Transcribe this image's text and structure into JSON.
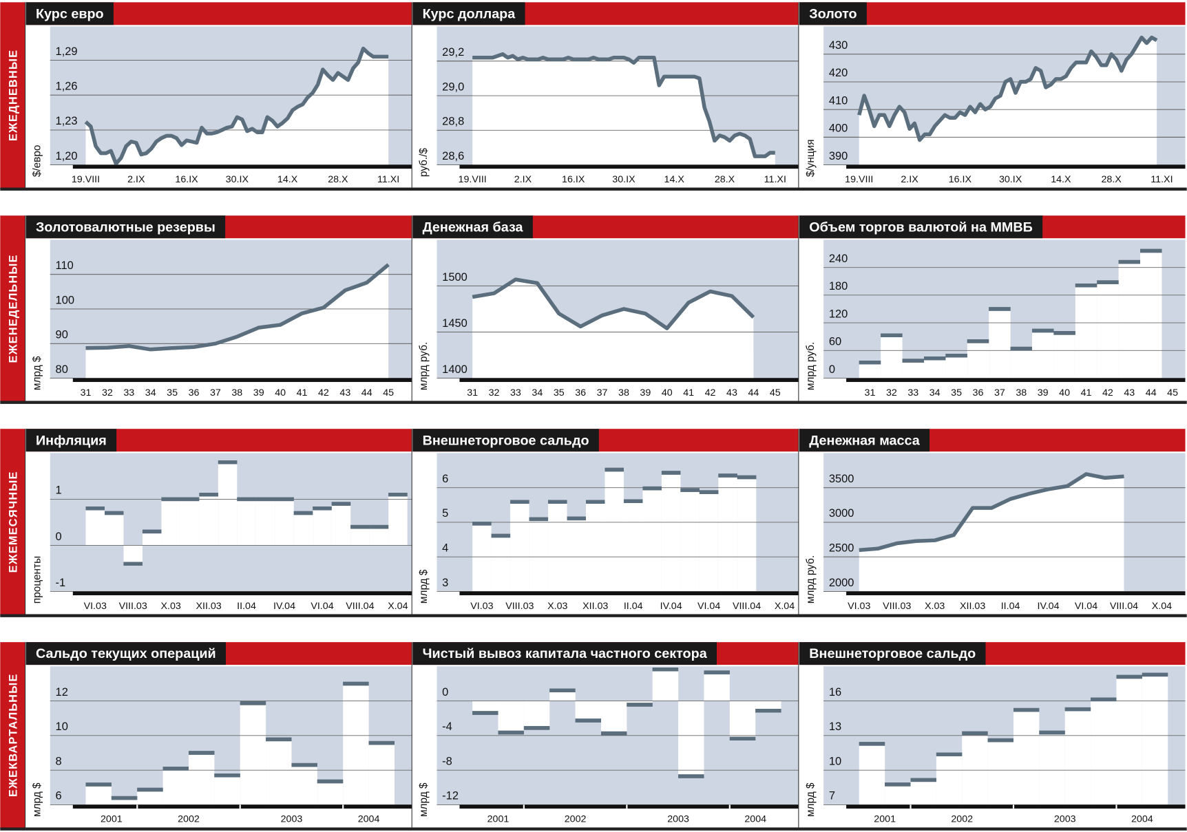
{
  "row_labels": [
    "ЕЖЕДНЕВНЫЕ",
    "ЕЖЕНЕДЕЛЬНЫЕ",
    "ЕЖЕМЕСЯЧНЫЕ",
    "ЕЖЕКВАРТАЛЬНЫЕ"
  ],
  "chart_data": [
    {
      "type": "line",
      "title": "Курс евро",
      "y_label": "$/евро",
      "color": "#5b6e7e",
      "grid": true,
      "categories": [
        "19.VIII",
        null,
        null,
        null,
        null,
        null,
        null,
        null,
        null,
        null,
        "2.IX",
        null,
        null,
        null,
        null,
        null,
        null,
        null,
        null,
        null,
        "16.IX",
        null,
        null,
        null,
        null,
        null,
        null,
        null,
        null,
        null,
        "30.IX",
        null,
        null,
        null,
        null,
        null,
        null,
        null,
        null,
        null,
        "14.X",
        null,
        null,
        null,
        null,
        null,
        null,
        null,
        null,
        null,
        "28.X",
        null,
        null,
        null,
        null,
        null,
        null,
        null,
        null,
        null,
        "11.XI"
      ],
      "values": [
        1.237,
        1.233,
        1.216,
        1.21,
        1.21,
        1.212,
        1.201,
        1.206,
        1.216,
        1.22,
        1.219,
        1.209,
        1.21,
        1.214,
        1.22,
        1.223,
        1.225,
        1.225,
        1.223,
        1.217,
        1.221,
        1.22,
        1.219,
        1.232,
        1.227,
        1.227,
        1.228,
        1.23,
        1.232,
        1.233,
        1.241,
        1.239,
        1.229,
        1.231,
        1.228,
        1.228,
        1.241,
        1.238,
        1.233,
        1.236,
        1.24,
        1.247,
        1.25,
        1.252,
        1.258,
        1.262,
        1.269,
        1.282,
        1.277,
        1.273,
        1.279,
        1.276,
        1.273,
        1.283,
        1.288,
        1.3,
        1.296,
        1.293,
        1.293,
        1.293,
        1.293
      ],
      "ylim": [
        1.2,
        1.319
      ],
      "yticks": [
        {
          "value": 1.2,
          "label": "1,20"
        },
        {
          "value": 1.23,
          "label": "1,23"
        },
        {
          "value": 1.26,
          "label": "1,26"
        },
        {
          "value": 1.29,
          "label": "1,29"
        }
      ]
    },
    {
      "type": "line",
      "title": "Курс доллара",
      "y_label": "руб./$",
      "color": "#5b6e7e",
      "grid": true,
      "categories": [
        "19.VIII",
        null,
        null,
        null,
        null,
        null,
        null,
        null,
        null,
        null,
        "2.IX",
        null,
        null,
        null,
        null,
        null,
        null,
        null,
        null,
        null,
        "16.IX",
        null,
        null,
        null,
        null,
        null,
        null,
        null,
        null,
        null,
        "30.IX",
        null,
        null,
        null,
        null,
        null,
        null,
        null,
        null,
        null,
        "14.X",
        null,
        null,
        null,
        null,
        null,
        null,
        null,
        null,
        null,
        "28.X",
        null,
        null,
        null,
        null,
        null,
        null,
        null,
        null,
        null,
        "11.XI"
      ],
      "values": [
        29.22,
        29.22,
        29.22,
        29.22,
        29.22,
        29.23,
        29.24,
        29.22,
        29.23,
        29.21,
        29.22,
        29.21,
        29.21,
        29.21,
        29.22,
        29.21,
        29.21,
        29.21,
        29.21,
        29.22,
        29.21,
        29.21,
        29.21,
        29.21,
        29.22,
        29.21,
        29.21,
        29.21,
        29.22,
        29.22,
        29.22,
        29.21,
        29.19,
        29.22,
        29.22,
        29.22,
        29.22,
        29.06,
        29.11,
        29.11,
        29.11,
        29.11,
        29.11,
        29.11,
        29.11,
        29.1,
        28.93,
        28.85,
        28.74,
        28.77,
        28.76,
        28.74,
        28.77,
        28.78,
        28.77,
        28.75,
        28.65,
        28.65,
        28.65,
        28.67,
        28.67
      ],
      "ylim": [
        28.6,
        29.4
      ],
      "yticks": [
        {
          "value": 28.6,
          "label": "28,6"
        },
        {
          "value": 28.8,
          "label": "28,8"
        },
        {
          "value": 29.0,
          "label": "29,0"
        },
        {
          "value": 29.2,
          "label": "29,2"
        }
      ]
    },
    {
      "type": "line",
      "title": "Золото",
      "y_label": "$/унция",
      "color": "#5b6e7e",
      "grid": true,
      "categories": [
        "19.VIII",
        null,
        null,
        null,
        null,
        null,
        null,
        null,
        null,
        null,
        "2.IX",
        null,
        null,
        null,
        null,
        null,
        null,
        null,
        null,
        null,
        "16.IX",
        null,
        null,
        null,
        null,
        null,
        null,
        null,
        null,
        null,
        "30.IX",
        null,
        null,
        null,
        null,
        null,
        null,
        null,
        null,
        null,
        "14.X",
        null,
        null,
        null,
        null,
        null,
        null,
        null,
        null,
        null,
        "28.X",
        null,
        null,
        null,
        null,
        null,
        null,
        null,
        null,
        null,
        "11.XI"
      ],
      "values": [
        408,
        415,
        410,
        404,
        408,
        408,
        404,
        408,
        411,
        409,
        403,
        405,
        399,
        401,
        401,
        404,
        406,
        408,
        407,
        407,
        409,
        408,
        411,
        409,
        412,
        410,
        411,
        414,
        415,
        420,
        421,
        416,
        420,
        420,
        421,
        425,
        424,
        418,
        419,
        421,
        421,
        422,
        425,
        427,
        427,
        427,
        431,
        429,
        426,
        426,
        430,
        428,
        424,
        428,
        430,
        433,
        436,
        434,
        436,
        435,
        null
      ],
      "ylim": [
        390,
        440
      ],
      "yticks": [
        390,
        400,
        410,
        420,
        430
      ]
    },
    {
      "type": "line",
      "title": "Золотовалютные резервы",
      "y_label": "млрд $",
      "color": "#5b6e7e",
      "grid": true,
      "categories": [
        "31",
        "32",
        "33",
        "34",
        "35",
        "36",
        "37",
        "38",
        "39",
        "40",
        "41",
        "42",
        "43",
        "44",
        "45"
      ],
      "values": [
        88.7,
        88.8,
        89.3,
        88.3,
        88.7,
        89.0,
        90.0,
        92.0,
        94.6,
        95.4,
        98.7,
        100.4,
        105.4,
        107.6,
        112.8
      ],
      "ylim": [
        80,
        120
      ],
      "yticks": [
        80,
        90,
        100,
        110
      ]
    },
    {
      "type": "line",
      "title": "Денежная база",
      "y_label": "млрд руб.",
      "color": "#5b6e7e",
      "grid": true,
      "categories": [
        "31",
        "32",
        "33",
        "34",
        "35",
        "36",
        "37",
        "38",
        "39",
        "40",
        "41",
        "42",
        "43",
        "44",
        "45"
      ],
      "values": [
        1488,
        1492,
        1507,
        1503,
        1470,
        1456,
        1468,
        1475,
        1470,
        1454,
        1482,
        1494,
        1489,
        1466,
        null
      ],
      "ylim": [
        1400,
        1550
      ],
      "yticks": [
        1400,
        1450,
        1500
      ]
    },
    {
      "type": "step",
      "title": "Объем торгов валютой на ММВБ",
      "y_label": "млрд руб.",
      "color": "#5b6e7e",
      "grid": true,
      "categories": [
        "31",
        "32",
        "33",
        "34",
        "35",
        "36",
        "37",
        "38",
        "39",
        "40",
        "41",
        "42",
        "43",
        "44",
        "45"
      ],
      "values": [
        34,
        93,
        38,
        43,
        49,
        80,
        150,
        64,
        103,
        98,
        201,
        208,
        252,
        276,
        null
      ],
      "ylim": [
        0,
        300
      ],
      "yticks": [
        0,
        60,
        120,
        180,
        240
      ]
    },
    {
      "type": "step",
      "title": "Инфляция",
      "y_label": "проценты",
      "color": "#5b6e7e",
      "grid": true,
      "categories": [
        "VI.03",
        null,
        "VIII.03",
        null,
        "X.03",
        null,
        "XII.03",
        null,
        "II.04",
        null,
        "IV.04",
        null,
        "VI.04",
        null,
        "VIII.04",
        null,
        "X.04"
      ],
      "values": [
        0.8,
        0.7,
        -0.4,
        0.3,
        1.0,
        1.0,
        1.1,
        1.8,
        1.0,
        1.0,
        1.0,
        0.7,
        0.8,
        0.9,
        0.4,
        0.4,
        1.1
      ],
      "ylim": [
        -1,
        2
      ],
      "yticks": [
        -1,
        0,
        1
      ]
    },
    {
      "type": "step",
      "title": "Внешнеторговое сальдо",
      "y_label": "млрд $",
      "color": "#5b6e7e",
      "grid": true,
      "categories": [
        "VI.03",
        null,
        "VIII.03",
        null,
        "X.03",
        null,
        "XII.03",
        null,
        "II.04",
        null,
        "IV.04",
        null,
        "VI.04",
        null,
        "VIII.04",
        null,
        "X.04"
      ],
      "values": [
        4.96,
        4.61,
        5.59,
        5.09,
        5.59,
        5.11,
        5.59,
        6.52,
        5.61,
        5.98,
        6.43,
        5.93,
        5.87,
        6.35,
        6.3,
        null,
        null
      ],
      "ylim": [
        3,
        7
      ],
      "yticks": [
        3,
        4,
        5,
        6
      ]
    },
    {
      "type": "line",
      "title": "Денежная масса",
      "y_label": "млрд руб.",
      "color": "#5b6e7e",
      "grid": true,
      "categories": [
        "VI.03",
        null,
        "VIII.03",
        null,
        "X.03",
        null,
        "XII.03",
        null,
        "II.04",
        null,
        "IV.04",
        null,
        "VI.04",
        null,
        "VIII.04",
        null,
        "X.04"
      ],
      "values": [
        2598,
        2620,
        2696,
        2728,
        2739,
        2815,
        3207,
        3207,
        3337,
        3413,
        3478,
        3522,
        3696,
        3641,
        3663,
        null,
        null
      ],
      "ylim": [
        2000,
        4000
      ],
      "yticks": [
        2000,
        2500,
        3000,
        3500
      ]
    },
    {
      "type": "step",
      "title": "Сальдо текущих операций",
      "y_label": "млрд $",
      "color": "#5b6e7e",
      "grid": true,
      "categories": [
        "2001",
        null,
        "2002",
        null,
        null,
        null,
        "2003",
        null,
        null,
        null,
        "2004",
        null
      ],
      "values": [
        7.17,
        6.39,
        6.87,
        8.09,
        9.0,
        7.7,
        11.87,
        9.78,
        8.3,
        7.35,
        13.0,
        9.57
      ],
      "ylim": [
        6,
        14
      ],
      "yticks": [
        6,
        8,
        10,
        12
      ]
    },
    {
      "type": "step",
      "title": "Чистый вывоз капитала частного сектора",
      "y_label": "млрд $",
      "color": "#5b6e7e",
      "grid": true,
      "categories": [
        "2001",
        null,
        "2002",
        null,
        null,
        null,
        "2003",
        null,
        null,
        null,
        "2004",
        null
      ],
      "values": [
        -1.39,
        -3.65,
        -3.13,
        1.22,
        -2.26,
        -3.74,
        -0.43,
        3.65,
        -8.7,
        3.3,
        -4.35,
        -1.13
      ],
      "ylim": [
        -12,
        4
      ],
      "yticks": [
        -12,
        -8,
        -4,
        0
      ]
    },
    {
      "type": "step",
      "title": "Внешнеторговое сальдо",
      "y_label": "млрд $",
      "color": "#5b6e7e",
      "grid": true,
      "categories": [
        "2001",
        null,
        "2002",
        null,
        null,
        null,
        "2003",
        null,
        null,
        null,
        "2004",
        null
      ],
      "values": [
        12.28,
        8.76,
        9.15,
        11.37,
        13.2,
        12.6,
        15.22,
        13.26,
        15.28,
        16.13,
        18.09,
        18.28
      ],
      "ylim": [
        7,
        19
      ],
      "yticks": [
        7,
        10,
        13,
        16
      ]
    }
  ]
}
